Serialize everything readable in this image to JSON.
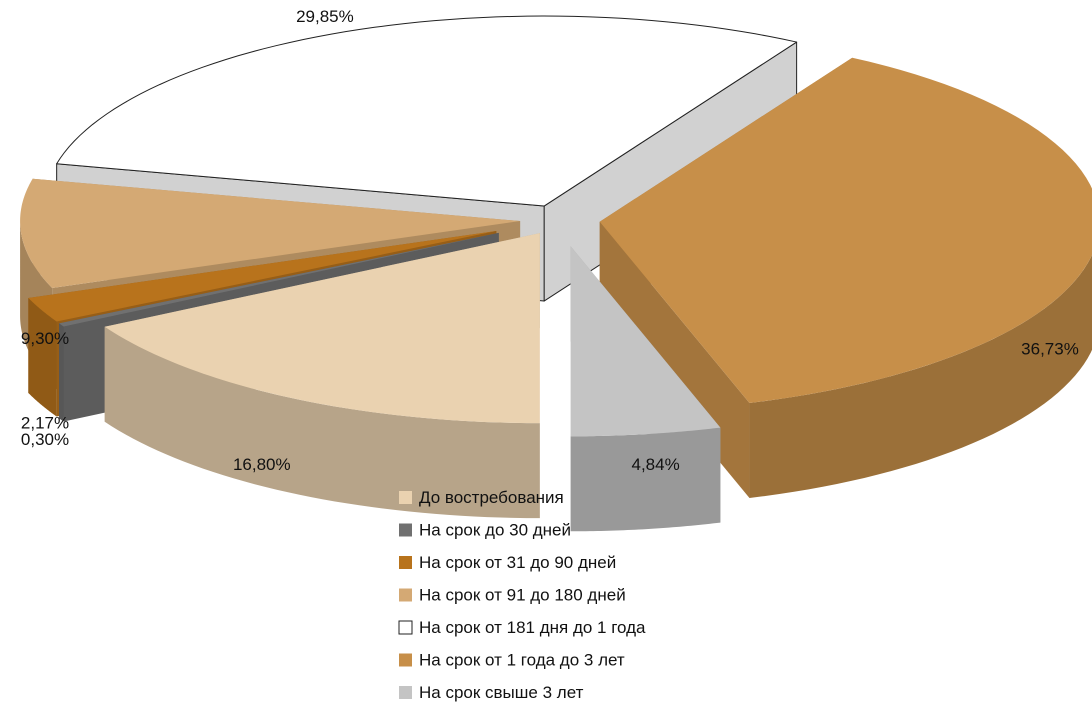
{
  "chart_data": {
    "type": "pie",
    "style": "3d-exploded",
    "legend_position": "bottom",
    "decimal_separator": ",",
    "unit": "%",
    "series": [
      {
        "name": "До востребования",
        "value": 16.8,
        "label": "16,80%",
        "color": "#EAD2B0"
      },
      {
        "name": "На срок до 30 дней",
        "value": 0.3,
        "label": "0,30%",
        "color": "#707070"
      },
      {
        "name": "На срок от 31 до 90 дней",
        "value": 2.17,
        "label": "2,17%",
        "color": "#B8731C"
      },
      {
        "name": "На срок от 91 до 180 дней",
        "value": 9.3,
        "label": "9,30%",
        "color": "#D4A974"
      },
      {
        "name": "На срок от 181 дня до 1 года",
        "value": 29.85,
        "label": "29,85%",
        "color": "#FFFFFF"
      },
      {
        "name": "На срок от 1 года до 3 лет",
        "value": 36.73,
        "label": "36,73%",
        "color": "#C78F49"
      },
      {
        "name": "На срок свыше 3 лет",
        "value": 4.84,
        "label": "4,84%",
        "color": "#C4C4C4"
      }
    ]
  }
}
